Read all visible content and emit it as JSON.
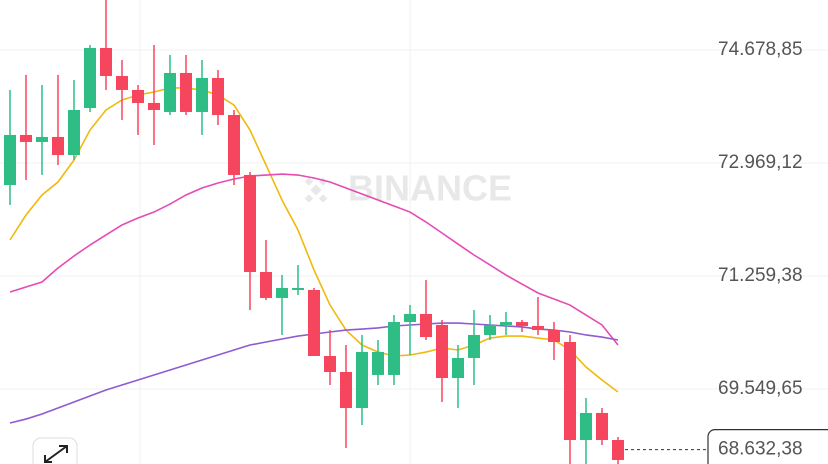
{
  "chart_data": {
    "type": "candlestick",
    "watermark": "BINANCE",
    "ylim": [
      68415,
      75435
    ],
    "yticks": [
      {
        "value": 74678.85,
        "label": "74.678,85"
      },
      {
        "value": 72969.12,
        "label": "72.969,12"
      },
      {
        "value": 71259.38,
        "label": "71.259,38"
      },
      {
        "value": 69549.65,
        "label": "69.549,65"
      }
    ],
    "grid": true,
    "up_color": "#2ebd85",
    "down_color": "#f6465d",
    "open": [
      72636,
      73393,
      73287,
      73363,
      73090,
      73801,
      74709,
      74285,
      74074,
      73877,
      73741,
      74331,
      73741,
      74255,
      73695,
      72788,
      71320,
      70927,
      71048,
      71048,
      70049,
      69807,
      69262,
      69762,
      69762,
      70563,
      70685,
      70518,
      69716,
      70019,
      70367,
      70518,
      70563,
      70503,
      70442,
      70261,
      68778,
      69187,
      68778
    ],
    "high": [
      74074,
      74301,
      74149,
      74301,
      74225,
      74754,
      75435,
      74527,
      74149,
      74754,
      74603,
      74603,
      74527,
      74376,
      73771,
      72833,
      71804,
      71275,
      71426,
      71078,
      70442,
      70215,
      70367,
      70291,
      70669,
      70821,
      71199,
      70594,
      70215,
      70745,
      70669,
      70715,
      70594,
      70942,
      70563,
      70367,
      69414,
      69262,
      68823
    ],
    "low": [
      72334,
      72712,
      72788,
      72939,
      73015,
      73741,
      74074,
      73620,
      73393,
      73241,
      73695,
      73695,
      73393,
      73544,
      72636,
      70745,
      70896,
      70367,
      70972,
      70049,
      69610,
      68657,
      69005,
      69610,
      69610,
      70064,
      70291,
      69353,
      69262,
      69610,
      70291,
      70367,
      70412,
      70367,
      69989,
      68415,
      68415,
      68702,
      68415
    ],
    "close": [
      73393,
      73287,
      73363,
      73090,
      73771,
      74709,
      74285,
      74074,
      73877,
      73771,
      74331,
      73741,
      74255,
      73695,
      72788,
      71320,
      70927,
      71078,
      71078,
      70049,
      69807,
      69262,
      70110,
      70110,
      70563,
      70685,
      70336,
      69716,
      70019,
      70367,
      70518,
      70563,
      70503,
      70442,
      70261,
      68778,
      69187,
      68778,
      68476
    ],
    "lines": [
      {
        "color": "#f0b90b",
        "values": [
          71804,
          72182,
          72485,
          72681,
          73014,
          73468,
          73771,
          73922,
          73998,
          74043,
          74104,
          74104,
          74073,
          73998,
          73846,
          73468,
          72939,
          72409,
          71955,
          71350,
          70820,
          70442,
          70215,
          70109,
          70049,
          70064,
          70109,
          70170,
          70140,
          70215,
          70321,
          70351,
          70351,
          70321,
          70291,
          70140,
          69882,
          69686,
          69504
        ]
      },
      {
        "color": "#e64bb4",
        "values": [
          71017,
          71093,
          71168,
          71380,
          71562,
          71728,
          71880,
          72031,
          72137,
          72227,
          72348,
          72485,
          72591,
          72666,
          72727,
          72772,
          72787,
          72802,
          72787,
          72742,
          72681,
          72591,
          72500,
          72409,
          72318,
          72227,
          72076,
          71910,
          71743,
          71577,
          71426,
          71274,
          71138,
          71002,
          70911,
          70820,
          70669,
          70518,
          70215
        ]
      },
      {
        "color": "#8e5bd0",
        "values": [
          69035,
          69095,
          69171,
          69262,
          69353,
          69444,
          69534,
          69610,
          69686,
          69761,
          69837,
          69913,
          69988,
          70064,
          70140,
          70215,
          70261,
          70306,
          70351,
          70382,
          70412,
          70442,
          70457,
          70473,
          70503,
          70518,
          70533,
          70548,
          70548,
          70533,
          70518,
          70503,
          70488,
          70457,
          70442,
          70412,
          70367,
          70336,
          70291
        ]
      }
    ],
    "last_price": {
      "value": 68632.38,
      "label": "68.632,38"
    }
  }
}
